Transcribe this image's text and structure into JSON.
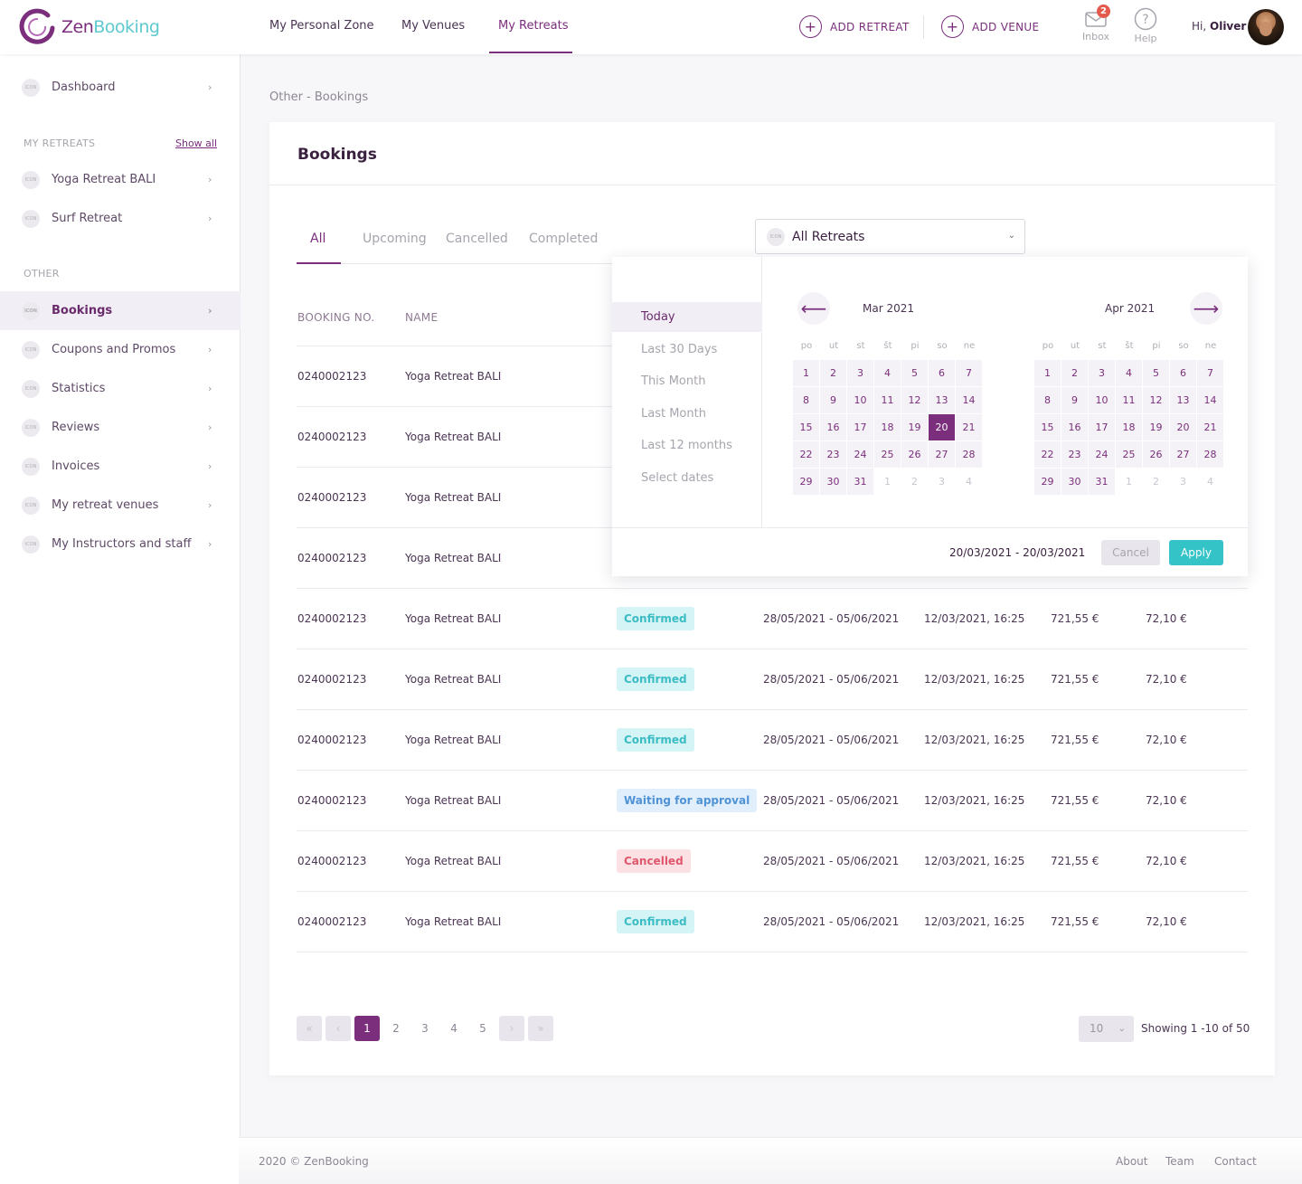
{
  "brand": {
    "zen": "Zen",
    "booking": "Booking",
    "colors": {
      "primary": "#7a2e7c",
      "accent": "#34c3c7"
    }
  },
  "nav": [
    "My Personal Zone",
    "My Venues",
    "My Retreats"
  ],
  "add_retreat": "ADD RETREAT",
  "add_venue": "ADD VENUE",
  "inbox": {
    "label": "Inbox",
    "count": "2",
    "icon": "envelope-icon"
  },
  "help": {
    "label": "Help",
    "icon": "question-icon"
  },
  "user": {
    "greeting": "Hi,",
    "name": "Oliver"
  },
  "sidebar": {
    "icon_text": "ICON",
    "dashboard": "Dashboard",
    "my_retreats_heading": "MY RETREATS",
    "show_all": "Show all",
    "retreats": [
      "Yoga Retreat BALI",
      "Surf Retreat"
    ],
    "other_heading": "OTHER",
    "other_items": [
      "Bookings",
      "Coupons and Promos",
      "Statistics",
      "Reviews",
      "Invoices",
      "My retreat venues",
      "My Instructors and staff"
    ]
  },
  "breadcrumb": "Other - Bookings",
  "card_title": "Bookings",
  "tabs": [
    "All",
    "Upcoming",
    "Cancelled",
    "Completed"
  ],
  "retreat_select": "All Retreats",
  "columns": {
    "booking_no": "BOOKING NO.",
    "name": "NAME"
  },
  "rows": [
    {
      "no": "0240002123",
      "name": "Yoga Retreat BALI"
    },
    {
      "no": "0240002123",
      "name": "Yoga Retreat BALI"
    },
    {
      "no": "0240002123",
      "name": "Yoga Retreat BALI"
    },
    {
      "no": "0240002123",
      "name": "Yoga Retreat BALI"
    },
    {
      "no": "0240002123",
      "name": "Yoga Retreat BALI",
      "status": "Confirmed",
      "dates": "28/05/2021 - 05/06/2021",
      "created": "12/03/2021, 16:25",
      "price": "721,55 €",
      "fee": "72,10 €"
    },
    {
      "no": "0240002123",
      "name": "Yoga Retreat BALI",
      "status": "Confirmed",
      "dates": "28/05/2021 - 05/06/2021",
      "created": "12/03/2021, 16:25",
      "price": "721,55 €",
      "fee": "72,10 €"
    },
    {
      "no": "0240002123",
      "name": "Yoga Retreat BALI",
      "status": "Confirmed",
      "dates": "28/05/2021 - 05/06/2021",
      "created": "12/03/2021, 16:25",
      "price": "721,55 €",
      "fee": "72,10 €"
    },
    {
      "no": "0240002123",
      "name": "Yoga Retreat BALI",
      "status": "Waiting for approval",
      "dates": "28/05/2021 - 05/06/2021",
      "created": "12/03/2021, 16:25",
      "price": "721,55 €",
      "fee": "72,10 €"
    },
    {
      "no": "0240002123",
      "name": "Yoga Retreat BALI",
      "status": "Cancelled",
      "dates": "28/05/2021 - 05/06/2021",
      "created": "12/03/2021, 16:25",
      "price": "721,55 €",
      "fee": "72,10 €"
    },
    {
      "no": "0240002123",
      "name": "Yoga Retreat BALI",
      "status": "Confirmed",
      "dates": "28/05/2021 - 05/06/2021",
      "created": "12/03/2021, 16:25",
      "price": "721,55 €",
      "fee": "72,10 €"
    }
  ],
  "status_colors": {
    "Confirmed": "#3cbcc4",
    "Waiting for approval": "#4f93d6",
    "Cancelled": "#e0576d"
  },
  "pagination": {
    "first": "«",
    "prev": "‹",
    "next": "›",
    "last": "»",
    "pages": [
      "1",
      "2",
      "3",
      "4",
      "5"
    ],
    "current": "1",
    "per_page": "10",
    "showing": "Showing 1 -10 of 50"
  },
  "datepicker": {
    "presets": [
      "Today",
      "Last 30 Days",
      "This Month",
      "Last Month",
      "Last 12 months",
      "Select dates"
    ],
    "active_preset": "Today",
    "prev_icon": "arrow-left-icon",
    "next_icon": "arrow-right-icon",
    "weekdays": [
      "po",
      "ut",
      "st",
      "št",
      "pi",
      "so",
      "ne"
    ],
    "months": [
      {
        "label": "Mar 2021",
        "days": [
          "1",
          "2",
          "3",
          "4",
          "5",
          "6",
          "7",
          "8",
          "9",
          "10",
          "11",
          "12",
          "13",
          "14",
          "15",
          "16",
          "17",
          "18",
          "19",
          "20",
          "21",
          "22",
          "23",
          "24",
          "25",
          "26",
          "27",
          "28",
          "29",
          "30",
          "31",
          "1",
          "2",
          "3",
          "4"
        ],
        "in_month": 31,
        "selected": "20"
      },
      {
        "label": "Apr 2021",
        "days": [
          "1",
          "2",
          "3",
          "4",
          "5",
          "6",
          "7",
          "8",
          "9",
          "10",
          "11",
          "12",
          "13",
          "14",
          "15",
          "16",
          "17",
          "18",
          "19",
          "20",
          "21",
          "22",
          "23",
          "24",
          "25",
          "26",
          "27",
          "28",
          "29",
          "30",
          "31",
          "1",
          "2",
          "3",
          "4"
        ],
        "in_month": 31,
        "selected": ""
      }
    ],
    "range": "20/03/2021 - 20/03/2021",
    "cancel": "Cancel",
    "apply": "Apply"
  },
  "footer": {
    "copyright": "2020 © ZenBooking",
    "links": [
      "About",
      "Team",
      "Contact"
    ]
  }
}
